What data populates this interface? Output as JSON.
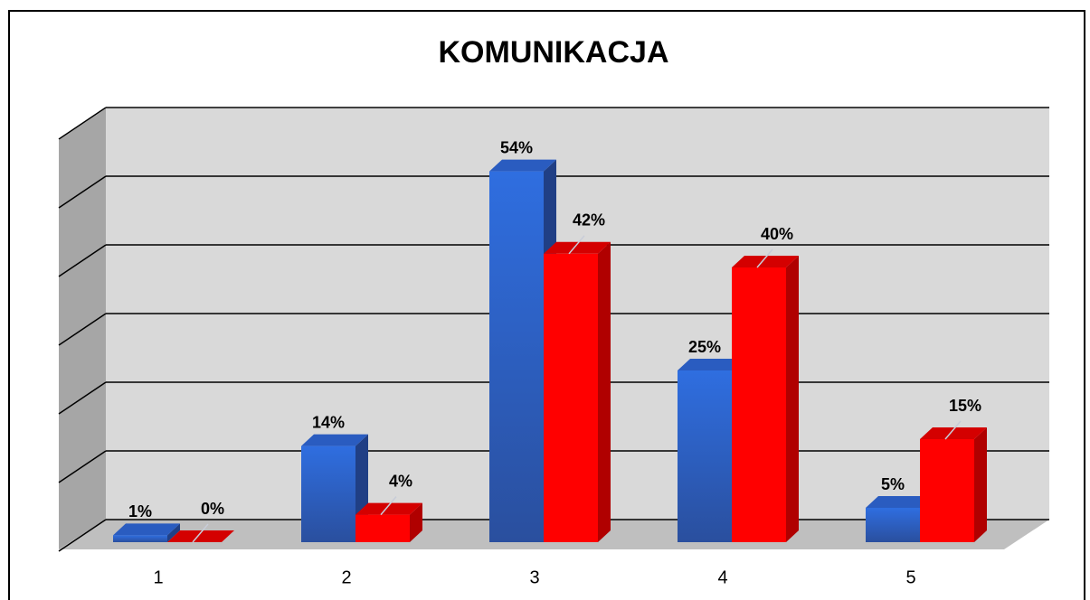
{
  "chart_data": {
    "type": "bar3d",
    "title": "KOMUNIKACJA",
    "categories": [
      "1",
      "2",
      "3",
      "4",
      "5"
    ],
    "series": [
      {
        "color": "#2d66d6",
        "values": [
          1,
          14,
          54,
          25,
          5
        ],
        "value_labels": [
          "1%",
          "14%",
          "54%",
          "25%",
          "5%"
        ]
      },
      {
        "color": "#ff0000",
        "values": [
          0,
          4,
          42,
          40,
          15
        ],
        "value_labels": [
          "0%",
          "4%",
          "42%",
          "40%",
          "15%"
        ]
      }
    ],
    "ylim": [
      0,
      60
    ],
    "yticks": [
      0,
      10,
      20,
      30,
      40,
      50,
      60
    ],
    "grid": true
  }
}
